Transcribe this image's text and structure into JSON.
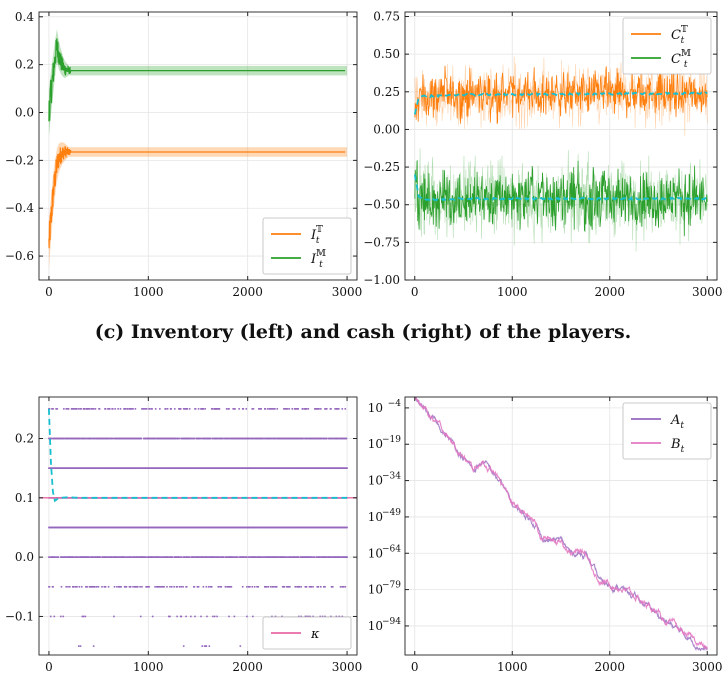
{
  "caption": "(c) Inventory (left) and cash (right) of the players.",
  "colors": {
    "orange": "#ff7f0e",
    "green": "#2ca02c",
    "cyan": "#17becf",
    "purple": "#9467bd",
    "pink": "#e377c2",
    "kappa": "#e86aa6",
    "grid": "#e5e5e5"
  },
  "chart_data": [
    {
      "id": "inventory",
      "type": "line",
      "xlim": [
        -100,
        3100
      ],
      "ylim": [
        -0.7,
        0.42
      ],
      "xticks": [
        0,
        1000,
        2000,
        3000
      ],
      "xtick_labels": [
        "0",
        "1000",
        "2000",
        "3000"
      ],
      "yticks": [
        -0.6,
        -0.4,
        -0.2,
        0.0,
        0.2,
        0.4
      ],
      "ytick_labels": [
        "−0.6",
        "−0.4",
        "−0.2",
        "0.0",
        "0.2",
        "0.4"
      ],
      "grid": true,
      "legend": "bottom-right",
      "series": [
        {
          "name": "I_t^T",
          "label_base": "I",
          "label_sub": "t",
          "label_sup": "𝕋",
          "color": "orange",
          "x": [
            0,
            20,
            40,
            60,
            80,
            100,
            130,
            160,
            200,
            300,
            3000
          ],
          "y": [
            -0.55,
            -0.45,
            -0.35,
            -0.28,
            -0.22,
            -0.19,
            -0.17,
            -0.165,
            -0.165,
            -0.165,
            -0.165
          ],
          "band": 0.02
        },
        {
          "name": "I_t^M",
          "label_base": "I",
          "label_sub": "t",
          "label_sup": "𝕄",
          "color": "green",
          "x": [
            0,
            20,
            40,
            60,
            80,
            100,
            130,
            160,
            200,
            300,
            3000
          ],
          "y": [
            0.0,
            0.08,
            0.15,
            0.22,
            0.28,
            0.24,
            0.2,
            0.18,
            0.175,
            0.175,
            0.175
          ],
          "band": 0.02
        }
      ]
    },
    {
      "id": "cash",
      "type": "line",
      "xlim": [
        -100,
        3100
      ],
      "ylim": [
        -1.0,
        0.78
      ],
      "xticks": [
        0,
        1000,
        2000,
        3000
      ],
      "xtick_labels": [
        "0",
        "1000",
        "2000",
        "3000"
      ],
      "yticks": [
        -1.0,
        -0.75,
        -0.5,
        -0.25,
        0.0,
        0.25,
        0.5,
        0.75
      ],
      "ytick_labels": [
        "−1.00",
        "−0.75",
        "−0.50",
        "−0.25",
        "0.00",
        "0.25",
        "0.50",
        "0.75"
      ],
      "grid": true,
      "legend": "top-right",
      "series": [
        {
          "name": "C_t^T",
          "label_base": "C",
          "label_sub": "t",
          "label_sup": "𝕋",
          "color": "orange",
          "mean": [
            [
              0,
              0.1
            ],
            [
              40,
              0.21
            ],
            [
              100,
              0.22
            ],
            [
              500,
              0.23
            ],
            [
              3000,
              0.24
            ]
          ],
          "noise": 0.11
        },
        {
          "name": "C_t^M",
          "label_base": "C",
          "label_sub": "t",
          "label_sup": "𝕄",
          "color": "green",
          "mean": [
            [
              0,
              -0.3
            ],
            [
              40,
              -0.44
            ],
            [
              100,
              -0.47
            ],
            [
              500,
              -0.46
            ],
            [
              3000,
              -0.46
            ]
          ],
          "noise": 0.14
        }
      ]
    },
    {
      "id": "kappa",
      "type": "scatter",
      "xlim": [
        -100,
        3100
      ],
      "ylim": [
        -0.165,
        0.27
      ],
      "xticks": [
        0,
        1000,
        2000,
        3000
      ],
      "xtick_labels": [
        "0",
        "1000",
        "2000",
        "3000"
      ],
      "yticks": [
        -0.1,
        0.0,
        0.1,
        0.2
      ],
      "ytick_labels": [
        "−0.1",
        "0.0",
        "0.1",
        "0.2"
      ],
      "grid": true,
      "legend": "bottom-right",
      "levels": [
        -0.15,
        -0.1,
        -0.05,
        0.0,
        0.05,
        0.1,
        0.15,
        0.2,
        0.25
      ],
      "level_density": [
        0.02,
        0.08,
        0.3,
        0.8,
        1.0,
        1.0,
        1.0,
        0.9,
        0.3
      ],
      "kappa_value": 0.1,
      "mean_curve": [
        [
          0,
          0.25
        ],
        [
          20,
          0.16
        ],
        [
          40,
          0.11
        ],
        [
          60,
          0.095
        ],
        [
          100,
          0.1
        ],
        [
          200,
          0.101
        ],
        [
          300,
          0.1
        ],
        [
          3000,
          0.1
        ]
      ],
      "series": [
        {
          "name": "κ",
          "label_base": "κ",
          "label_sub": "",
          "label_sup": "",
          "color": "kappa"
        }
      ]
    },
    {
      "id": "AB",
      "type": "line",
      "yscale": "log",
      "xlim": [
        -100,
        3100
      ],
      "ylim_log10": [
        -106,
        0.5
      ],
      "xticks": [
        0,
        1000,
        2000,
        3000
      ],
      "xtick_labels": [
        "0",
        "1000",
        "2000",
        "3000"
      ],
      "yticks_log10": [
        -4,
        -19,
        -34,
        -49,
        -64,
        -79,
        -94
      ],
      "ytick_labels": [
        "−4",
        "−19",
        "−34",
        "−49",
        "−64",
        "−79",
        "−94"
      ],
      "ytick_base": "10",
      "grid": true,
      "legend": "top-right",
      "series": [
        {
          "name": "A_t",
          "label_base": "A",
          "label_sub": "t",
          "label_sup": "",
          "color": "purple",
          "x": [
            0,
            300,
            600,
            700,
            900,
            1000,
            1250,
            1300,
            1500,
            1600,
            1750,
            1900,
            2100,
            2400,
            2600,
            3000
          ],
          "log10y": [
            -0.5,
            -14,
            -30,
            -26,
            -36,
            -44,
            -52,
            -58,
            -59,
            -64,
            -64,
            -76,
            -78,
            -86,
            -93,
            -104
          ]
        },
        {
          "name": "B_t",
          "label_base": "B",
          "label_sub": "t",
          "label_sup": "",
          "color": "pink",
          "x": [
            0,
            300,
            600,
            700,
            900,
            1000,
            1250,
            1300,
            1500,
            1600,
            1750,
            1900,
            2100,
            2400,
            2600,
            3000
          ],
          "log10y": [
            -0.5,
            -14,
            -30,
            -26,
            -36,
            -44,
            -52,
            -58,
            -59,
            -64,
            -64,
            -76,
            -78,
            -86,
            -93,
            -104
          ]
        }
      ]
    }
  ]
}
